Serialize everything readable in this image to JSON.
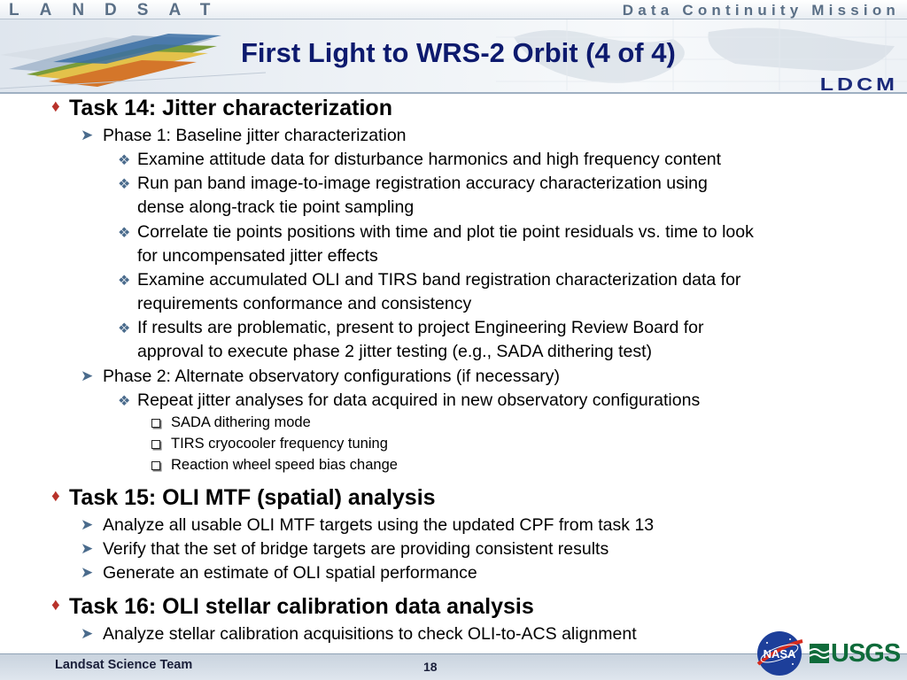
{
  "header": {
    "brand_left": "LANDSAT",
    "brand_right": "Data Continuity Mission",
    "title": "First Light to WRS-2 Orbit (4 of 4)",
    "logo": "LDCM"
  },
  "content": {
    "task14": {
      "label": "Task 14: Jitter characterization",
      "phase1": "Phase 1:  Baseline jitter characterization",
      "p1_b1": "Examine attitude data for disturbance harmonics and high frequency content",
      "p1_b2_l1": "Run pan band image-to-image registration accuracy characterization using",
      "p1_b2_l2": "dense along-track tie point sampling",
      "p1_b3_l1": "Correlate tie points positions with time and plot tie point residuals vs. time to look",
      "p1_b3_l2": "for uncompensated jitter effects",
      "p1_b4_l1": "Examine accumulated OLI and TIRS band registration characterization data for",
      "p1_b4_l2": "requirements conformance and consistency",
      "p1_b5_l1": "If results are problematic, present to project Engineering Review Board for",
      "p1_b5_l2": "approval to execute phase 2 jitter testing (e.g., SADA dithering test)",
      "phase2": "Phase 2:  Alternate observatory configurations (if necessary)",
      "p2_b1": "Repeat jitter analyses for data acquired in new observatory configurations",
      "p2_sub1": "SADA dithering mode",
      "p2_sub2": "TIRS cryocooler frequency tuning",
      "p2_sub3": "Reaction wheel speed bias change"
    },
    "task15": {
      "label": "Task 15:  OLI MTF (spatial) analysis",
      "b1": "Analyze all usable OLI MTF targets using the updated CPF from task 13",
      "b2": "Verify that the set of bridge targets are providing consistent results",
      "b3": "Generate an estimate of OLI spatial performance"
    },
    "task16": {
      "label": "Task 16:  OLI stellar calibration data analysis",
      "b1": "Analyze stellar calibration acquisitions to check OLI-to-ACS alignment"
    }
  },
  "footer": {
    "team": "Landsat Science Team",
    "page": "18",
    "nasa": "NASA",
    "usgs": "USGS"
  },
  "colors": {
    "title": "#0d1a6e",
    "diamond_bullet": "#b8322a",
    "arrow_bullet": "#4a6b8c",
    "usgs_green": "#0f6b3a"
  }
}
